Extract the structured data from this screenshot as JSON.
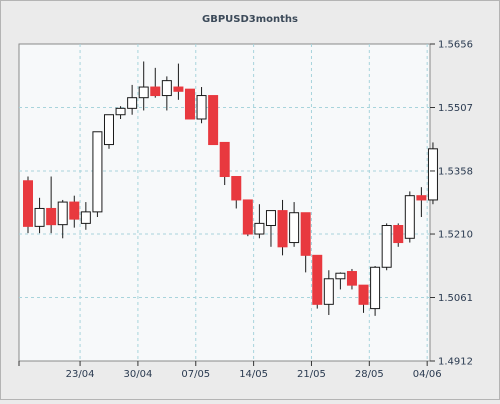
{
  "chart_data": {
    "type": "candlestick",
    "title": "GBPUSD3months",
    "y_axis": {
      "position": "right",
      "ticks": [
        "1.5656",
        "1.5507",
        "1.5358",
        "1.5210",
        "1.5061",
        "1.4912"
      ],
      "tick_values": [
        1.5656,
        1.5507,
        1.5358,
        1.521,
        1.5061,
        1.4912
      ],
      "ylim": [
        1.4912,
        1.5656
      ]
    },
    "x_axis": {
      "tick_labels": [
        "23/04",
        "30/04",
        "07/05",
        "14/05",
        "21/05",
        "28/05",
        "04/06"
      ],
      "tick_index": [
        5,
        10,
        15,
        20,
        25,
        30,
        35
      ]
    },
    "grid": true,
    "colors": {
      "up": "#ffffff",
      "down": "#e8393f",
      "outline": "#1a1a1a",
      "grid": "#a8d4dc",
      "plot_bg": "#f7f9fa",
      "page_bg": "#ebebeb"
    },
    "candles": [
      {
        "open": 1.5335,
        "high": 1.5345,
        "low": 1.5212,
        "close": 1.5228
      },
      {
        "open": 1.5228,
        "high": 1.5295,
        "low": 1.5212,
        "close": 1.527
      },
      {
        "open": 1.527,
        "high": 1.5345,
        "low": 1.5212,
        "close": 1.5232
      },
      {
        "open": 1.5232,
        "high": 1.529,
        "low": 1.52,
        "close": 1.5285
      },
      {
        "open": 1.5285,
        "high": 1.53,
        "low": 1.5225,
        "close": 1.5245
      },
      {
        "open": 1.5235,
        "high": 1.5285,
        "low": 1.522,
        "close": 1.5262
      },
      {
        "open": 1.5262,
        "high": 1.545,
        "low": 1.525,
        "close": 1.545
      },
      {
        "open": 1.542,
        "high": 1.549,
        "low": 1.541,
        "close": 1.549
      },
      {
        "open": 1.549,
        "high": 1.551,
        "low": 1.548,
        "close": 1.5505
      },
      {
        "open": 1.5505,
        "high": 1.556,
        "low": 1.549,
        "close": 1.553
      },
      {
        "open": 1.553,
        "high": 1.5615,
        "low": 1.55,
        "close": 1.5555
      },
      {
        "open": 1.5555,
        "high": 1.56,
        "low": 1.553,
        "close": 1.5535
      },
      {
        "open": 1.5535,
        "high": 1.558,
        "low": 1.55,
        "close": 1.557
      },
      {
        "open": 1.5555,
        "high": 1.561,
        "low": 1.5525,
        "close": 1.5545
      },
      {
        "open": 1.555,
        "high": 1.555,
        "low": 1.548,
        "close": 1.548
      },
      {
        "open": 1.548,
        "high": 1.5555,
        "low": 1.547,
        "close": 1.5535
      },
      {
        "open": 1.5535,
        "high": 1.5535,
        "low": 1.542,
        "close": 1.542
      },
      {
        "open": 1.5425,
        "high": 1.5425,
        "low": 1.5325,
        "close": 1.5345
      },
      {
        "open": 1.5345,
        "high": 1.5345,
        "low": 1.527,
        "close": 1.529
      },
      {
        "open": 1.529,
        "high": 1.529,
        "low": 1.5205,
        "close": 1.521
      },
      {
        "open": 1.521,
        "high": 1.528,
        "low": 1.52,
        "close": 1.5235
      },
      {
        "open": 1.523,
        "high": 1.5265,
        "low": 1.518,
        "close": 1.5265
      },
      {
        "open": 1.5265,
        "high": 1.529,
        "low": 1.516,
        "close": 1.518
      },
      {
        "open": 1.519,
        "high": 1.5285,
        "low": 1.518,
        "close": 1.526
      },
      {
        "open": 1.526,
        "high": 1.526,
        "low": 1.512,
        "close": 1.516
      },
      {
        "open": 1.516,
        "high": 1.516,
        "low": 1.5035,
        "close": 1.5045
      },
      {
        "open": 1.5045,
        "high": 1.5125,
        "low": 1.502,
        "close": 1.5105
      },
      {
        "open": 1.5105,
        "high": 1.512,
        "low": 1.508,
        "close": 1.5118
      },
      {
        "open": 1.5122,
        "high": 1.5128,
        "low": 1.508,
        "close": 1.509
      },
      {
        "open": 1.509,
        "high": 1.509,
        "low": 1.5025,
        "close": 1.5045
      },
      {
        "open": 1.5035,
        "high": 1.5135,
        "low": 1.5018,
        "close": 1.5132
      },
      {
        "open": 1.5132,
        "high": 1.5235,
        "low": 1.5125,
        "close": 1.523
      },
      {
        "open": 1.523,
        "high": 1.5235,
        "low": 1.518,
        "close": 1.519
      },
      {
        "open": 1.52,
        "high": 1.531,
        "low": 1.519,
        "close": 1.53
      },
      {
        "open": 1.53,
        "high": 1.532,
        "low": 1.525,
        "close": 1.529
      },
      {
        "open": 1.529,
        "high": 1.5425,
        "low": 1.528,
        "close": 1.541
      }
    ]
  }
}
